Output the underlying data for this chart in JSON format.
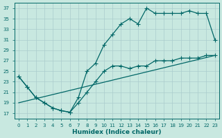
{
  "xlabel": "Humidex (Indice chaleur)",
  "bg_color": "#c8e8e0",
  "grid_color": "#aacccc",
  "line_color": "#006666",
  "xlim": [
    -0.5,
    23.5
  ],
  "ylim": [
    16,
    38
  ],
  "xticks": [
    0,
    1,
    2,
    3,
    4,
    5,
    6,
    7,
    8,
    9,
    10,
    11,
    12,
    13,
    14,
    15,
    16,
    17,
    18,
    19,
    20,
    21,
    22,
    23
  ],
  "yticks": [
    17,
    19,
    21,
    23,
    25,
    27,
    29,
    31,
    33,
    35,
    37
  ],
  "line1_x": [
    0,
    1,
    2,
    3,
    4,
    5,
    6,
    7,
    8,
    9,
    10,
    11,
    12,
    13,
    14,
    15,
    16,
    17,
    18,
    19,
    20,
    21,
    22,
    23
  ],
  "line1_y": [
    24,
    22,
    20,
    19,
    18,
    17.5,
    17.2,
    20,
    25,
    26.5,
    30,
    32,
    34,
    35,
    34,
    37,
    36,
    36,
    36,
    36,
    36.5,
    36,
    36,
    31
  ],
  "line2_x": [
    0,
    1,
    2,
    3,
    4,
    5,
    6,
    7,
    8,
    9,
    10,
    11,
    12,
    13,
    14,
    15,
    16,
    17,
    18,
    19,
    20,
    21,
    22,
    23
  ],
  "line2_y": [
    24,
    22,
    20,
    19,
    18,
    17.5,
    17.2,
    19,
    21,
    23,
    25,
    26,
    26,
    25.5,
    26,
    26,
    27,
    27,
    27,
    27.5,
    27.5,
    27.5,
    28,
    28
  ],
  "line3_x": [
    0,
    23
  ],
  "line3_y": [
    19,
    28
  ]
}
